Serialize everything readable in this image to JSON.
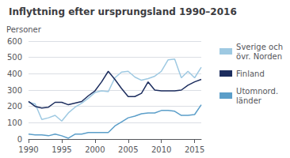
{
  "chart_data": {
    "type": "line",
    "title": "Inflyttning efter ursprungsland 1990–2016",
    "ylabel": "Personer",
    "x": [
      1990,
      1991,
      1992,
      1993,
      1994,
      1995,
      1996,
      1997,
      1998,
      1999,
      2000,
      2001,
      2002,
      2003,
      2004,
      2005,
      2006,
      2007,
      2008,
      2009,
      2010,
      2011,
      2012,
      2013,
      2014,
      2015,
      2016
    ],
    "series": [
      {
        "name": "Sverige och\növr. Norden",
        "color": "#9ec9e2",
        "values": [
          225,
          215,
          120,
          130,
          145,
          110,
          160,
          195,
          220,
          250,
          285,
          295,
          290,
          375,
          410,
          415,
          380,
          360,
          370,
          385,
          415,
          485,
          490,
          375,
          415,
          375,
          440
        ]
      },
      {
        "name": "Finland",
        "color": "#1c2d5e",
        "values": [
          230,
          200,
          190,
          195,
          225,
          225,
          210,
          220,
          230,
          265,
          295,
          350,
          415,
          365,
          310,
          260,
          260,
          280,
          350,
          300,
          295,
          295,
          295,
          300,
          330,
          350,
          365
        ]
      },
      {
        "name": "Utomnord.\nländer",
        "color": "#5b9ec9",
        "values": [
          30,
          25,
          25,
          20,
          30,
          20,
          5,
          30,
          30,
          40,
          40,
          40,
          40,
          80,
          105,
          130,
          140,
          155,
          160,
          160,
          175,
          175,
          170,
          145,
          145,
          150,
          210
        ]
      }
    ],
    "xlim": [
      1990,
      2016
    ],
    "xticks": [
      1990,
      1995,
      2000,
      2005,
      2010,
      2015
    ],
    "ylim": [
      0,
      600
    ],
    "yticks": [
      0,
      100,
      200,
      300,
      400,
      500,
      600
    ],
    "grid": true,
    "legend": "right"
  }
}
